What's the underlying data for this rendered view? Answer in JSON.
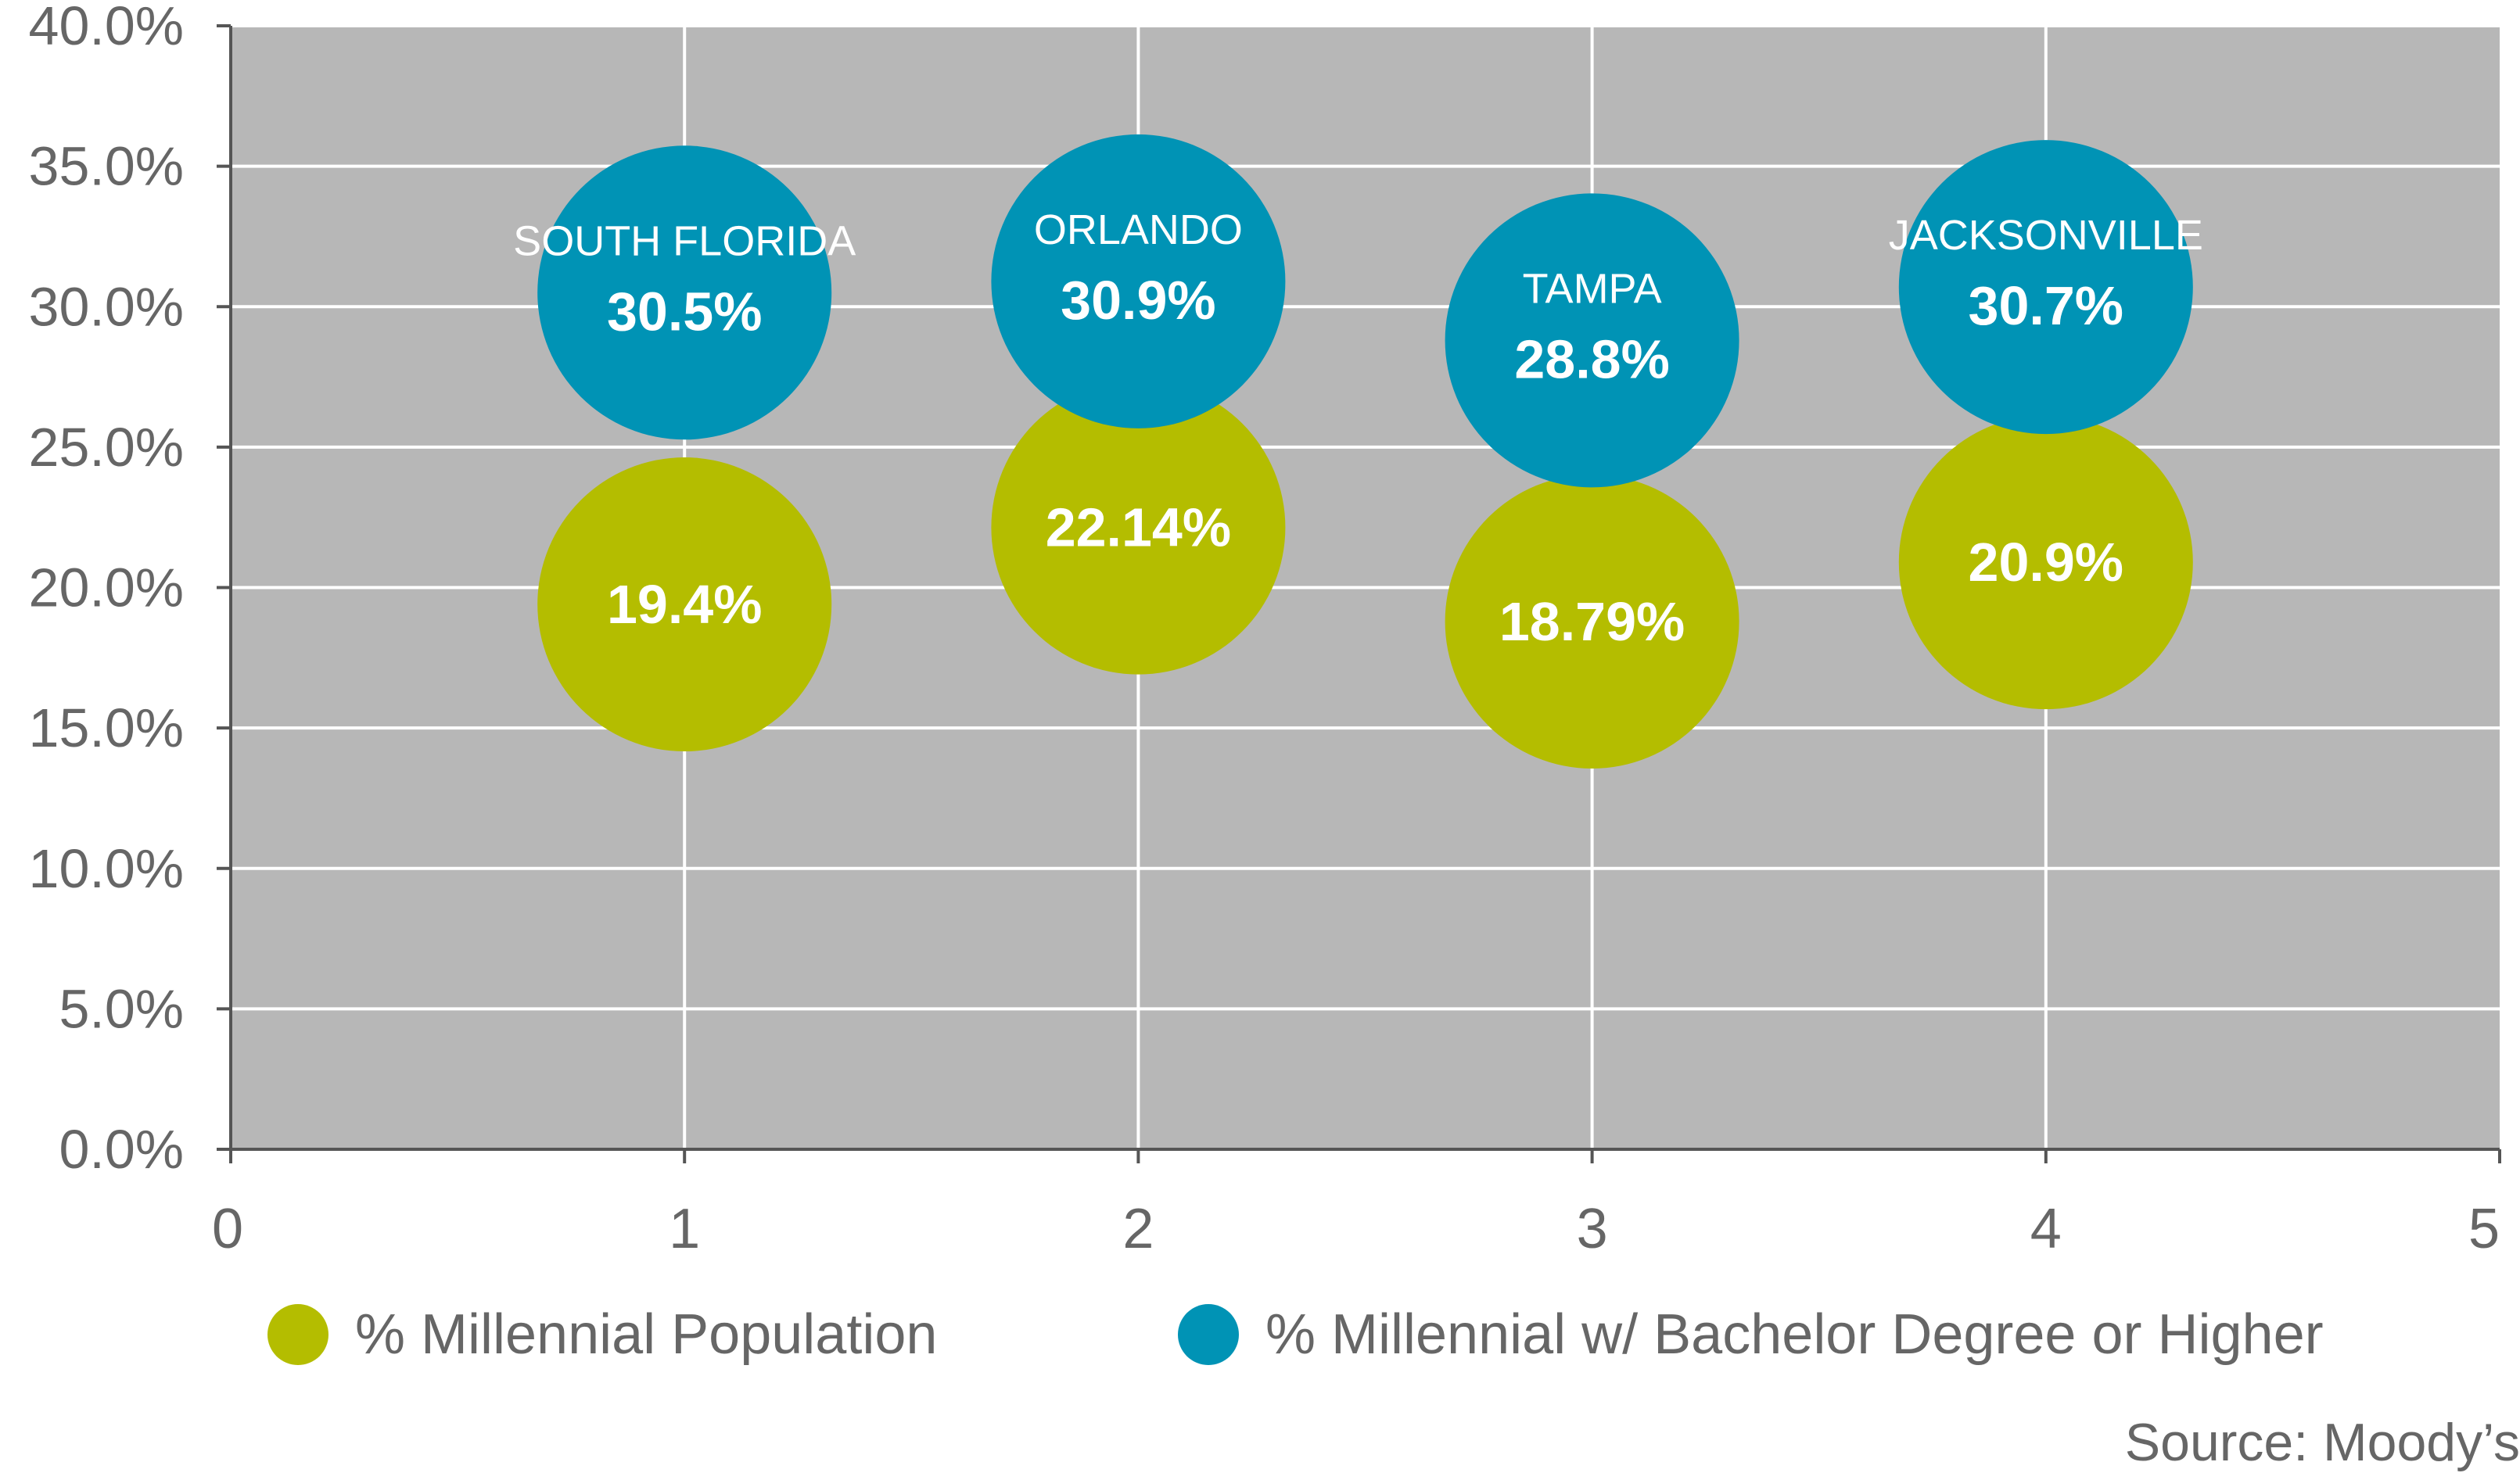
{
  "colors": {
    "plot_background": "#b7b7b7",
    "grid": "#ffffff",
    "axis": "#555555",
    "tick_text": "#666666",
    "series_population": "#b4bd00",
    "series_bachelor": "#0093b5",
    "bubble_text": "#ffffff"
  },
  "chart_data": {
    "type": "scatter",
    "title": "",
    "xlabel": "",
    "ylabel": "",
    "xlim": [
      0,
      5
    ],
    "ylim": [
      0,
      40
    ],
    "x_ticks": [
      "0",
      "1",
      "2",
      "3",
      "4",
      "5"
    ],
    "y_ticks": [
      "0.0%",
      "5.0%",
      "10.0%",
      "15.0%",
      "20.0%",
      "25.0%",
      "30.0%",
      "35.0%",
      "40.0%"
    ],
    "grid": true,
    "legend_position": "bottom",
    "series": [
      {
        "name": "% Millennial Population",
        "color": "#b4bd00",
        "points": [
          {
            "x": 1,
            "y": 19.4,
            "label": "19.4%"
          },
          {
            "x": 2,
            "y": 22.14,
            "label": "22.14%"
          },
          {
            "x": 3,
            "y": 18.79,
            "label": "18.79%"
          },
          {
            "x": 4,
            "y": 20.9,
            "label": "20.9%"
          }
        ]
      },
      {
        "name": "% Millennial w/ Bachelor Degree or Higher",
        "color": "#0093b5",
        "points": [
          {
            "x": 1,
            "y": 30.5,
            "label": "30.5%",
            "city": "SOUTH FLORIDA"
          },
          {
            "x": 2,
            "y": 30.9,
            "label": "30.9%",
            "city": "ORLANDO"
          },
          {
            "x": 3,
            "y": 28.8,
            "label": "28.8%",
            "city": "TAMPA"
          },
          {
            "x": 4,
            "y": 30.7,
            "label": "30.7%",
            "city": "JACKSONVILLE"
          }
        ]
      }
    ]
  },
  "legend": {
    "items": [
      {
        "label": "% Millennial Population",
        "color": "#b4bd00"
      },
      {
        "label": "% Millennial w/ Bachelor Degree or Higher",
        "color": "#0093b5"
      }
    ]
  },
  "source": "Source: Moody’s"
}
